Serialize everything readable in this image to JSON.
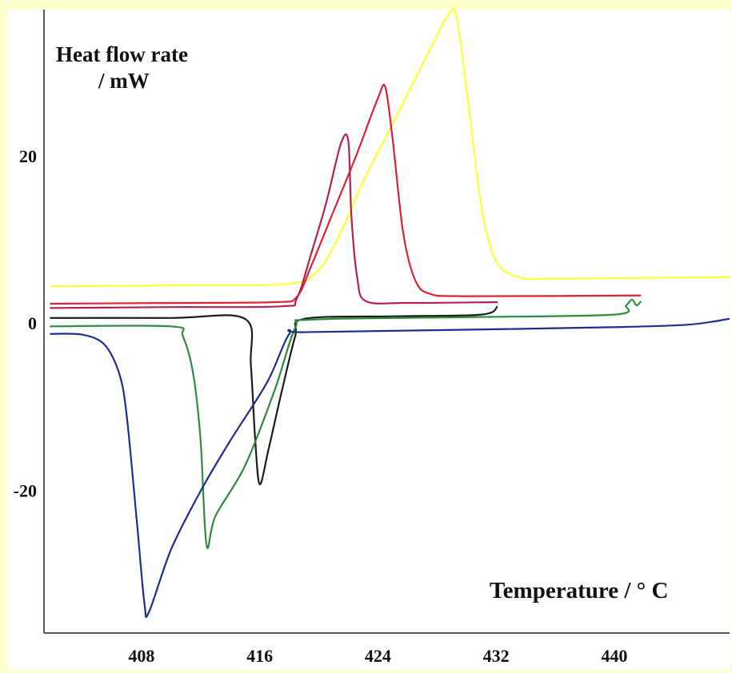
{
  "chart_data": {
    "type": "line",
    "ylabel_line1": "Heat flow rate",
    "ylabel_line2": "/ mW",
    "xlabel": "Temperature / ° C",
    "x_ticks": [
      408,
      416,
      424,
      432,
      440
    ],
    "y_ticks": [
      {
        "value": 20,
        "label": "20"
      },
      {
        "value": 0,
        "label": "0"
      },
      {
        "value": -20,
        "label": "-20"
      }
    ],
    "xlim": [
      401.4,
      447.8
    ],
    "ylim": [
      -37,
      37.6
    ],
    "series": [
      {
        "color": "#ffff33",
        "points": [
          [
            401.8,
            4.5
          ],
          [
            411,
            4.6
          ],
          [
            418,
            4.8
          ],
          [
            420,
            6.5
          ],
          [
            421.5,
            11
          ],
          [
            423,
            17
          ],
          [
            425,
            24
          ],
          [
            427,
            31
          ],
          [
            428.7,
            36.8
          ],
          [
            429.3,
            36.8
          ],
          [
            430,
            28
          ],
          [
            431,
            14
          ],
          [
            432,
            7.5
          ],
          [
            433.5,
            5.6
          ],
          [
            436,
            5.4
          ],
          [
            447.8,
            5.6
          ]
        ]
      },
      {
        "color": "#dd2233",
        "points": [
          [
            401.8,
            2.4
          ],
          [
            410,
            2.5
          ],
          [
            417,
            2.6
          ],
          [
            418.5,
            3.2
          ],
          [
            419.5,
            7
          ],
          [
            421,
            13.5
          ],
          [
            422.5,
            20
          ],
          [
            424,
            27
          ],
          [
            424.5,
            28.3
          ],
          [
            425,
            22
          ],
          [
            425.7,
            11
          ],
          [
            426.5,
            5.3
          ],
          [
            427.5,
            3.6
          ],
          [
            430,
            3.3
          ],
          [
            441.8,
            3.4
          ]
        ]
      },
      {
        "color": "#b0244c",
        "points": [
          [
            401.8,
            1.9
          ],
          [
            410,
            2
          ],
          [
            417.5,
            2.1
          ],
          [
            418.5,
            3
          ],
          [
            419.5,
            8.5
          ],
          [
            420.5,
            14.5
          ],
          [
            421.5,
            21.6
          ],
          [
            422,
            21.8
          ],
          [
            422.2,
            13
          ],
          [
            422.6,
            5.5
          ],
          [
            423.2,
            2.7
          ],
          [
            426,
            2.5
          ],
          [
            432.1,
            2.6
          ]
        ]
      },
      {
        "color": "#1c1c1c",
        "points": [
          [
            401.8,
            0.7
          ],
          [
            410,
            0.7
          ],
          [
            415,
            0.6
          ],
          [
            415.4,
            -5
          ],
          [
            415.7,
            -14
          ],
          [
            416,
            -19.2
          ],
          [
            416.6,
            -15
          ],
          [
            417.5,
            -8
          ],
          [
            418.4,
            -1.5
          ],
          [
            419,
            0.6
          ],
          [
            425,
            0.9
          ],
          [
            431,
            1.1
          ],
          [
            432.1,
            2.1
          ]
        ]
      },
      {
        "color": "#2e8b3e",
        "points": [
          [
            401.8,
            -0.3
          ],
          [
            410,
            -0.3
          ],
          [
            410.8,
            -1.5
          ],
          [
            411.5,
            -6
          ],
          [
            412,
            -14
          ],
          [
            412.4,
            -26.5
          ],
          [
            413,
            -23
          ],
          [
            415,
            -17
          ],
          [
            417,
            -8
          ],
          [
            418.4,
            -0.5
          ],
          [
            419.5,
            0.5
          ],
          [
            430,
            0.8
          ],
          [
            440,
            1.1
          ],
          [
            440.8,
            2.2
          ],
          [
            441.2,
            2.9
          ],
          [
            441.5,
            2.2
          ],
          [
            441.8,
            2.7
          ]
        ]
      },
      {
        "color": "#1e2d8f",
        "points": [
          [
            401.8,
            -1.2
          ],
          [
            404,
            -1.3
          ],
          [
            405.5,
            -2.5
          ],
          [
            406.5,
            -6
          ],
          [
            407,
            -11
          ],
          [
            407.7,
            -24
          ],
          [
            408.2,
            -33.5
          ],
          [
            408.5,
            -34.5
          ],
          [
            410,
            -27
          ],
          [
            412,
            -20
          ],
          [
            414,
            -14
          ],
          [
            416.5,
            -7
          ],
          [
            418,
            -1.2
          ],
          [
            419,
            -1
          ],
          [
            430,
            -0.7
          ],
          [
            440,
            -0.4
          ],
          [
            445,
            -0.1
          ],
          [
            447.8,
            0.6
          ]
        ]
      }
    ]
  }
}
